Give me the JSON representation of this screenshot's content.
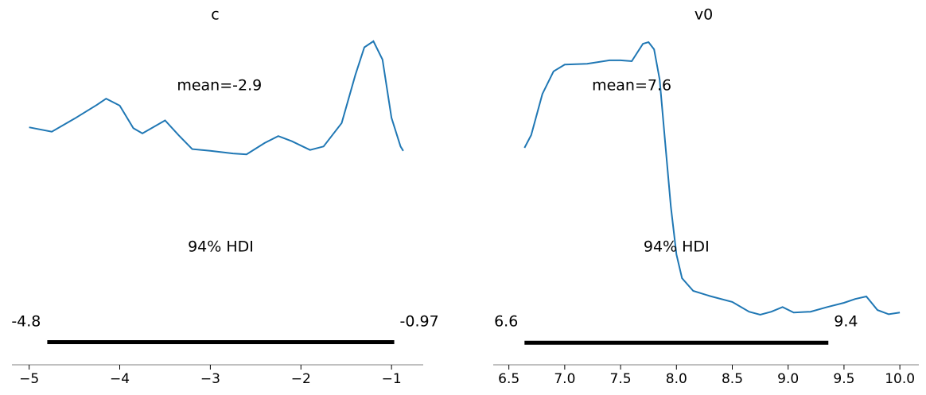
{
  "chart_data": [
    {
      "type": "line",
      "title": "c",
      "x": [
        -5.0,
        -4.75,
        -4.5,
        -4.25,
        -4.15,
        -4.0,
        -3.85,
        -3.75,
        -3.5,
        -3.35,
        -3.2,
        -3.0,
        -2.75,
        -2.6,
        -2.4,
        -2.25,
        -2.1,
        -1.9,
        -1.75,
        -1.55,
        -1.4,
        -1.3,
        -1.2,
        -1.1,
        -1.0,
        -0.9,
        -0.87
      ],
      "values": [
        0.247,
        0.242,
        0.257,
        0.273,
        0.28,
        0.272,
        0.246,
        0.24,
        0.255,
        0.238,
        0.222,
        0.22,
        0.217,
        0.216,
        0.229,
        0.237,
        0.231,
        0.221,
        0.225,
        0.252,
        0.307,
        0.339,
        0.346,
        0.325,
        0.258,
        0.225,
        0.22
      ],
      "color": "#1f77b4",
      "mean": {
        "value": -2.9,
        "label": "mean=-2.9"
      },
      "hdi_label": "94% HDI",
      "hdi": [
        -4.8,
        -0.97
      ],
      "xlim": [
        -5.19,
        -0.65
      ],
      "ylim": [
        -0.026,
        0.366
      ],
      "xticks": [
        {
          "value": -5,
          "label": "−5"
        },
        {
          "value": -4,
          "label": "−4"
        },
        {
          "value": -3,
          "label": "−3"
        },
        {
          "value": -2,
          "label": "−2"
        },
        {
          "value": -1,
          "label": "−1"
        }
      ]
    },
    {
      "type": "line",
      "title": "v0",
      "x": [
        6.64,
        6.7,
        6.8,
        6.9,
        7.0,
        7.2,
        7.4,
        7.5,
        7.6,
        7.7,
        7.75,
        7.8,
        7.85,
        7.9,
        7.95,
        8.0,
        8.05,
        8.15,
        8.3,
        8.5,
        8.65,
        8.75,
        8.85,
        8.95,
        9.05,
        9.2,
        9.35,
        9.5,
        9.6,
        9.7,
        9.8,
        9.9,
        10.0
      ],
      "values": [
        0.459,
        0.489,
        0.586,
        0.639,
        0.655,
        0.657,
        0.665,
        0.665,
        0.663,
        0.704,
        0.708,
        0.691,
        0.62,
        0.47,
        0.32,
        0.208,
        0.152,
        0.122,
        0.11,
        0.096,
        0.073,
        0.066,
        0.073,
        0.084,
        0.071,
        0.073,
        0.084,
        0.094,
        0.103,
        0.109,
        0.077,
        0.067,
        0.071
      ],
      "color": "#1f77b4",
      "mean": {
        "value": 7.6,
        "label": "mean=7.6"
      },
      "hdi_label": "94% HDI",
      "hdi": [
        {
          "value": 6.64,
          "label": "6.6"
        },
        {
          "value": 9.36,
          "label": "9.4"
        }
      ],
      "xlim": [
        6.36,
        10.17
      ],
      "ylim": [
        -0.052,
        0.751
      ],
      "xticks": [
        6.5,
        {
          "value": 7.0,
          "label": "7.0"
        },
        7.5,
        {
          "value": 8.0,
          "label": "8.0"
        },
        8.5,
        {
          "value": 9.0,
          "label": "9.0"
        },
        9.5,
        {
          "value": 10.0,
          "label": "10.0"
        }
      ]
    }
  ]
}
